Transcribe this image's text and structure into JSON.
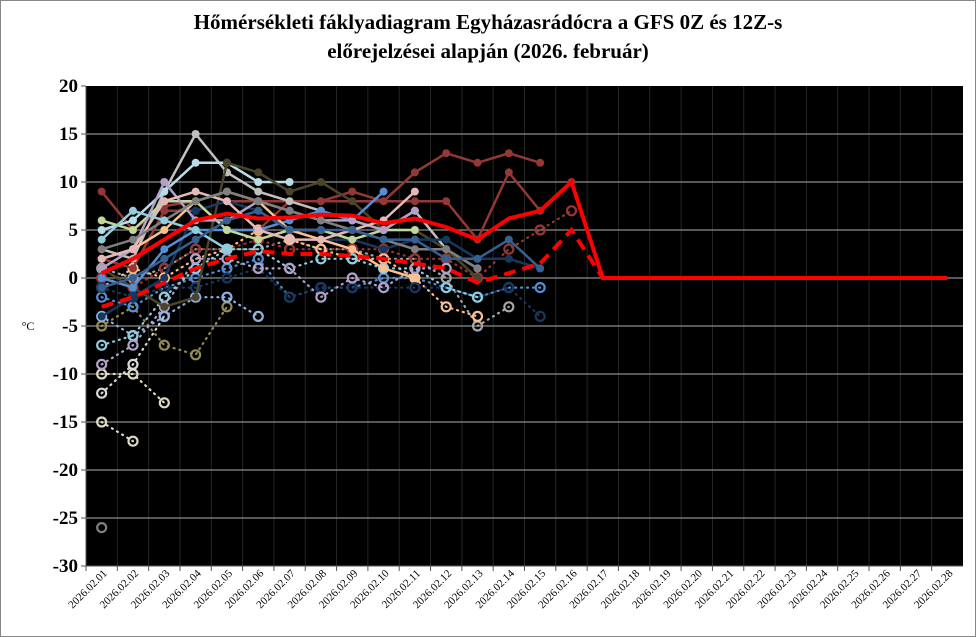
{
  "chart_data": {
    "type": "line",
    "title_line1": "Hőmérsékleti fáklyadiagram Egyházasrádócra a GFS 0Z és 12Z-s",
    "title_line2": "előrejelzései alapján (2026. február)",
    "ylabel": "°C",
    "xlabel": "",
    "ylim": [
      -30,
      20
    ],
    "yticks": [
      20,
      15,
      10,
      5,
      0,
      -5,
      -10,
      -15,
      -20,
      -25,
      -30
    ],
    "grid": true,
    "background": "#000000",
    "categories": [
      "2026.02.01",
      "2026.02.02",
      "2026.02.03",
      "2026.02.04",
      "2026.02.05",
      "2026.02.06",
      "2026.02.07",
      "2026.02.08",
      "2026.02.09",
      "2026.02.10",
      "2026.02.11",
      "2026.02.12",
      "2026.02.13",
      "2026.02.14",
      "2026.02.15",
      "2026.02.16",
      "2026.02.17",
      "2026.02.18",
      "2026.02.19",
      "2026.02.20",
      "2026.02.21",
      "2026.02.22",
      "2026.02.23",
      "2026.02.24",
      "2026.02.25",
      "2026.02.26",
      "2026.02.27",
      "2026.02.28"
    ],
    "mean_max": {
      "color": "#ff0000",
      "style": "solid",
      "values": [
        0.5,
        2,
        4,
        6,
        6.7,
        6.2,
        6.3,
        6.6,
        6.5,
        5.7,
        6.2,
        5.3,
        4,
        6.2,
        7,
        10,
        0,
        0,
        0,
        0,
        0,
        0,
        0,
        0,
        0,
        0,
        0,
        0
      ]
    },
    "mean_min": {
      "color": "#ff0000",
      "style": "dashed",
      "values": [
        -3,
        -2,
        -0.5,
        1,
        2,
        2.8,
        2.5,
        2.5,
        2.3,
        2,
        1.5,
        1,
        -0.5,
        0.5,
        1.5,
        5,
        0
      ]
    },
    "ensemble_max": [
      {
        "color": "#953735",
        "values": [
          9,
          5,
          7.5,
          8,
          5,
          5,
          8,
          8,
          8,
          8,
          11,
          13,
          12,
          13,
          12
        ]
      },
      {
        "color": "#953735",
        "values": [
          2,
          1,
          7,
          7,
          8,
          8,
          8,
          8,
          9,
          8,
          8,
          8,
          4,
          11,
          7,
          10
        ]
      },
      {
        "color": "#c0c0c0",
        "values": [
          3,
          2,
          9,
          15,
          11,
          9,
          8,
          7,
          6,
          5,
          7,
          3,
          1
        ]
      },
      {
        "color": "#b7dee8",
        "values": [
          5,
          6,
          9,
          12,
          12,
          10,
          10
        ]
      },
      {
        "color": "#4a452a",
        "values": [
          1,
          -1,
          -3,
          -2,
          12,
          11,
          9,
          10,
          8,
          5,
          5,
          3,
          0
        ]
      },
      {
        "color": "#17375e",
        "values": [
          -4,
          -2,
          0,
          7,
          8,
          7,
          5,
          4,
          4,
          3,
          4,
          4,
          2,
          2,
          1
        ]
      },
      {
        "color": "#558ed5",
        "values": [
          0,
          -1,
          3,
          5,
          5,
          5,
          6,
          7,
          6,
          9
        ]
      },
      {
        "color": "#fac090",
        "values": [
          2,
          3,
          5,
          8,
          9,
          8,
          5,
          4,
          3,
          1,
          0
        ]
      },
      {
        "color": "#c3d69b",
        "values": [
          6,
          5,
          8,
          8,
          5,
          4,
          5,
          5,
          4,
          5,
          5
        ]
      },
      {
        "color": "#b3a2c7",
        "values": [
          1,
          3,
          10,
          6,
          6,
          8,
          7,
          6,
          6,
          5,
          7
        ]
      },
      {
        "color": "#e6b9b8",
        "values": [
          2,
          3,
          8,
          9,
          8,
          5,
          4,
          4,
          5,
          6,
          9
        ]
      },
      {
        "color": "#7f7f7f",
        "values": [
          3,
          4,
          6,
          8,
          9,
          8,
          7,
          6,
          5,
          4,
          3,
          3,
          1
        ]
      },
      {
        "color": "#93cddd",
        "values": [
          4,
          7,
          6,
          5,
          3
        ]
      },
      {
        "color": "#376092",
        "values": [
          -1,
          0,
          2,
          4,
          6,
          7,
          5,
          5,
          5,
          4,
          4,
          2,
          2,
          4,
          1
        ]
      }
    ],
    "ensemble_min": [
      {
        "color": "#7f7f7f",
        "values": [
          -26
        ]
      },
      {
        "color": "#ddd9c3",
        "values": [
          -15,
          -17
        ]
      },
      {
        "color": "#ddd9c3",
        "values": [
          -10,
          -10,
          -13
        ]
      },
      {
        "color": "#d9d9d9",
        "values": [
          -12,
          -9,
          -4
        ]
      },
      {
        "color": "#948a54",
        "values": [
          -5,
          -3,
          -7,
          -8,
          -3
        ]
      },
      {
        "color": "#8eb4e3",
        "values": [
          -4,
          -6,
          -4,
          -2,
          -2,
          -4
        ]
      },
      {
        "color": "#558ed5",
        "values": [
          -2,
          -3,
          -1,
          0,
          1,
          2,
          -2,
          -1,
          -1,
          0,
          0,
          -1,
          -2,
          -1,
          -1
        ]
      },
      {
        "color": "#a6a6a6",
        "values": [
          1,
          0,
          1,
          3,
          3,
          3,
          4,
          3,
          3,
          2,
          2,
          0,
          -5,
          -3
        ]
      },
      {
        "color": "#953735",
        "values": [
          0,
          -1,
          1,
          3,
          3,
          4,
          3,
          3,
          3,
          3,
          2,
          2,
          0,
          3,
          5,
          7
        ]
      },
      {
        "color": "#fac090",
        "values": [
          -1,
          1,
          0,
          2,
          3,
          5,
          4,
          3,
          2,
          2,
          0,
          -3,
          -4
        ]
      },
      {
        "color": "#17375e",
        "values": [
          -1,
          -2,
          -1,
          -1,
          0,
          1,
          -2,
          -1,
          -1,
          -1,
          -1,
          -1,
          -2,
          -1,
          -4
        ]
      },
      {
        "color": "#93cddd",
        "values": [
          -7,
          -6,
          -2,
          1,
          3,
          3,
          1,
          2,
          2,
          1,
          1,
          -1,
          -2
        ]
      },
      {
        "color": "#b3a2c7",
        "values": [
          -9,
          -7,
          -3,
          2,
          2,
          1,
          1,
          -2,
          0,
          -1,
          1,
          1
        ]
      }
    ]
  }
}
